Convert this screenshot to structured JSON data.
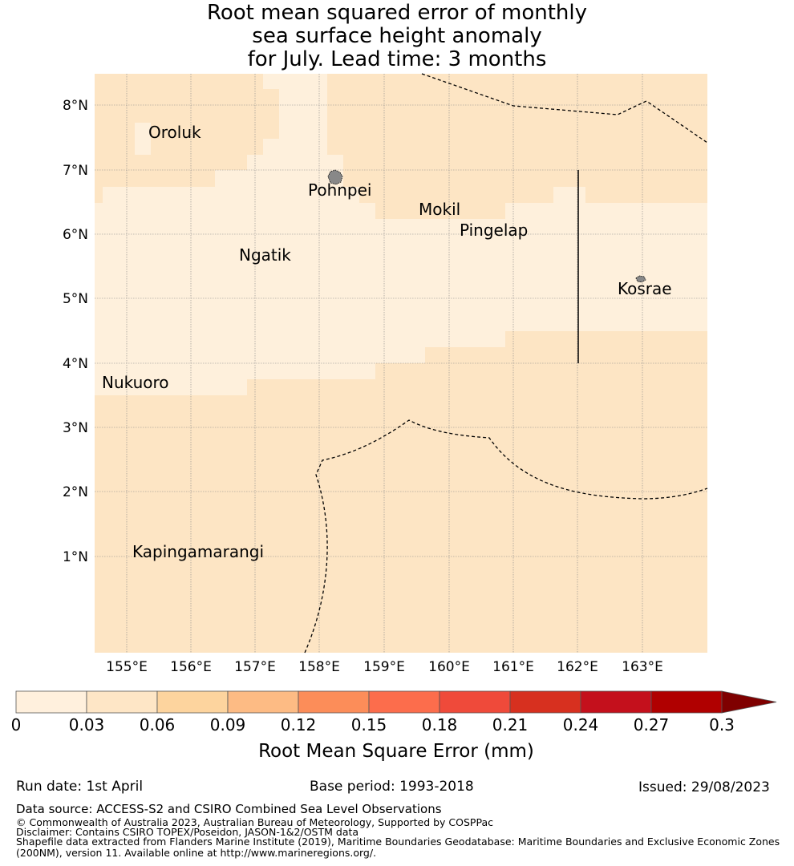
{
  "title": {
    "line1": "Root mean squared error of monthly",
    "line2": "sea surface height anomaly",
    "line3": "for July. Lead time: 3 months"
  },
  "map": {
    "lat_ticks": [
      "1°N",
      "2°N",
      "3°N",
      "4°N",
      "5°N",
      "6°N",
      "7°N",
      "8°N"
    ],
    "lon_ticks": [
      "155°E",
      "156°E",
      "157°E",
      "158°E",
      "159°E",
      "160°E",
      "161°E",
      "162°E",
      "163°E"
    ],
    "lat_range": [
      -0.25,
      8.5
    ],
    "lon_range": [
      154.5,
      164.0
    ],
    "grid": true,
    "place_names": [
      "Oroluk",
      "Pohnpei",
      "Mokil",
      "Pingelap",
      "Ngatik",
      "Kosrae",
      "Nukuoro",
      "Kapingamarangi"
    ],
    "colors": {
      "low": "#fef0dc",
      "mid": "#fde5c4",
      "grid": "#888888"
    }
  },
  "colorbar": {
    "label": "Root Mean Square Error (mm)",
    "ticks": [
      "0",
      "0.03",
      "0.06",
      "0.09",
      "0.12",
      "0.15",
      "0.18",
      "0.21",
      "0.24",
      "0.27",
      "0.3"
    ],
    "colors": [
      "#fff0dd",
      "#fee6c6",
      "#fdd49e",
      "#fdbb84",
      "#fc8d59",
      "#fc6d4c",
      "#ef4a3a",
      "#d7301f",
      "#c4101c",
      "#b00000"
    ],
    "extend_color": "#7f0000"
  },
  "footer": {
    "run_date": "Run date: 1st April",
    "base_period": "Base period: 1993-2018",
    "issued": "Issued: 29/08/2023",
    "data_source": "Data source: ACCESS-S2 and CSIRO Combined Sea Level Observations",
    "copyright": "© Commonwealth of Australia 2023, Australian Bureau of Meteorology, Supported by COSPPac",
    "disclaimer": "Disclaimer: Contains CSIRO TOPEX/Poseidon, JASON-1&2/OSTM data",
    "shapefile1": "Shapefile data extracted from Flanders Marine Institute (2019), Maritime Boundaries Geodatabase: Maritime Boundaries and Exclusive Economic Zones",
    "shapefile2": "(200NM), version 11. Available online at http://www.marineregions.org/."
  }
}
